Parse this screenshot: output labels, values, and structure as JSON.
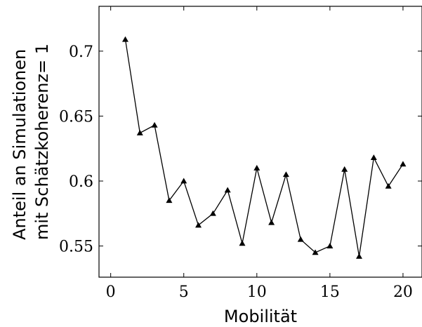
{
  "chart_data": {
    "type": "line",
    "xlabel": "Mobilität",
    "ylabel": [
      "Anteil an Simulationen",
      "mit Schätzkoherenz= 1"
    ],
    "xlim": [
      -0.8,
      21.3
    ],
    "ylim": [
      0.526,
      0.7345
    ],
    "xticks": [
      0,
      5,
      10,
      15,
      20
    ],
    "xtick_labels": [
      "0",
      "5",
      "10",
      "15",
      "20"
    ],
    "yticks": [
      0.55,
      0.6,
      0.65,
      0.7
    ],
    "ytick_labels": [
      "0.55",
      "0.6",
      "0.65",
      "0.7"
    ],
    "grid": false,
    "marker": "triangle",
    "series": [
      {
        "x": [
          1,
          2,
          3,
          4,
          5,
          6,
          7,
          8,
          9,
          10,
          11,
          12,
          13,
          14,
          15,
          16,
          17,
          18,
          19,
          20
        ],
        "values": [
          0.709,
          0.637,
          0.643,
          0.585,
          0.6,
          0.566,
          0.575,
          0.593,
          0.552,
          0.61,
          0.568,
          0.605,
          0.555,
          0.545,
          0.55,
          0.609,
          0.542,
          0.618,
          0.596,
          0.613
        ]
      }
    ]
  }
}
